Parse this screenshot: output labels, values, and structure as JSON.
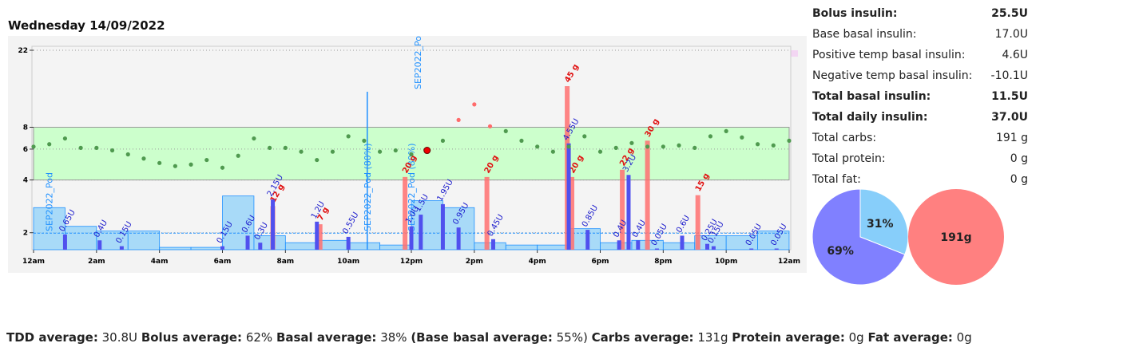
{
  "chart_data": [
    {
      "type": "daily",
      "title": "Wednesday 14/09/2022",
      "log_y": true,
      "xlim": [
        0,
        24
      ],
      "xticks": [
        {
          "value": 0,
          "label": "12am"
        },
        {
          "value": 2,
          "label": "2am"
        },
        {
          "value": 4,
          "label": "4am"
        },
        {
          "value": 6,
          "label": "6am"
        },
        {
          "value": 8,
          "label": "8am"
        },
        {
          "value": 10,
          "label": "10am"
        },
        {
          "value": 12,
          "label": "12pm"
        },
        {
          "value": 14,
          "label": "2pm"
        },
        {
          "value": 16,
          "label": "4pm"
        },
        {
          "value": 18,
          "label": "6pm"
        },
        {
          "value": 20,
          "label": "8pm"
        },
        {
          "value": 22,
          "label": "10pm"
        },
        {
          "value": 24,
          "label": "12am"
        }
      ],
      "ylim": [
        1.6,
        22
      ],
      "yticks": [
        2,
        4,
        6,
        8,
        22
      ],
      "target_range": [
        4,
        8
      ],
      "y2lim": [
        0,
        45
      ],
      "y3lim": [
        0,
        7
      ],
      "glucose": {
        "color": "#4f9a4f",
        "high_color": "#ff6b6b",
        "x": [
          0,
          0.5,
          1,
          1.5,
          2,
          2.5,
          3,
          3.5,
          4,
          4.5,
          5,
          5.5,
          6,
          6.5,
          7,
          7.5,
          8,
          8.5,
          9,
          9.5,
          10,
          10.5,
          11,
          11.5,
          12,
          12.5,
          13,
          13.5,
          14,
          14.5,
          15,
          15.5,
          16,
          16.5,
          17,
          17.5,
          18,
          18.5,
          19,
          19.5,
          20,
          20.5,
          21,
          21.5,
          22,
          22.5,
          23,
          23.5,
          24
        ],
        "values": [
          6.2,
          6.4,
          6.9,
          6.1,
          6.1,
          5.9,
          5.6,
          5.3,
          5.0,
          4.8,
          4.9,
          5.2,
          4.7,
          5.5,
          6.9,
          6.1,
          6.1,
          5.8,
          5.2,
          5.8,
          7.1,
          6.7,
          5.8,
          5.9,
          5.6,
          5.9,
          6.7,
          8.8,
          10.8,
          8.1,
          7.6,
          6.7,
          6.2,
          5.8,
          6.2,
          7.1,
          5.8,
          6.1,
          6.5,
          6.2,
          6.2,
          6.3,
          6.1,
          7.1,
          7.6,
          7.0,
          6.4,
          6.3,
          6.7
        ]
      },
      "marker": {
        "x": 12.5,
        "y": 5.9,
        "color": "#ee0000"
      },
      "basal": {
        "color": "#87cefa",
        "line_color": "#1e90ff",
        "x": [
          0,
          1,
          2,
          3,
          4,
          5,
          6,
          7,
          8,
          9,
          10,
          11,
          12,
          13,
          14,
          15,
          16,
          17,
          18,
          19,
          20,
          21,
          22,
          23
        ],
        "values": [
          1.8,
          1.0,
          0.8,
          0.8,
          0.1,
          0.1,
          2.3,
          0.6,
          0.3,
          0.4,
          0.3,
          0.2,
          2.1,
          1.8,
          0.3,
          0.2,
          0.2,
          0.9,
          0.3,
          0.4,
          0.3,
          0.6,
          0.6,
          0.8
        ]
      },
      "base_basal_rate": 0.71,
      "bolus": {
        "color": "#5050ee",
        "label_color": "#1a1acc",
        "x": [
          1.0,
          2.1,
          2.8,
          6.0,
          6.8,
          7.2,
          7.6,
          9.0,
          10.0,
          12.0,
          12.3,
          13.0,
          13.5,
          14.6,
          17.0,
          17.6,
          18.6,
          18.9,
          19.2,
          19.8,
          20.6,
          21.4,
          21.6,
          22.8,
          23.6
        ],
        "values": [
          0.65,
          0.4,
          0.15,
          0.15,
          0.6,
          0.3,
          2.15,
          1.2,
          0.55,
          1.0,
          1.5,
          1.95,
          0.95,
          0.45,
          4.55,
          0.85,
          0.4,
          3.2,
          0.4,
          0.05,
          0.6,
          0.25,
          0.15,
          0.05,
          0.05
        ],
        "value_labels": [
          "0.65U",
          "0.4U",
          "0.15U",
          "0.15U",
          "0.6U",
          "0.3U",
          "2.15U",
          "1.2U",
          "0.55U",
          "1.0U",
          "1.5U",
          "1.95U",
          "0.95U",
          "0.45U",
          "4.55U",
          "0.85U",
          "0.4U",
          "3.2U",
          "0.4U",
          "0.05U",
          "0.6U",
          "0.25U",
          "0.15U",
          "0.05U",
          "0.05U"
        ]
      },
      "carbs": {
        "color": "#ff7070",
        "label_color": "#e01010",
        "x": [
          7.6,
          9.1,
          11.8,
          14.4,
          16.95,
          17.1,
          18.7,
          19.5,
          21.1
        ],
        "values": [
          12,
          7,
          20,
          20,
          45,
          20,
          22,
          30,
          15
        ],
        "value_labels": [
          "12 g",
          "7 g",
          "20 g",
          "20 g",
          "45 g",
          "20 g",
          "22 g",
          "30 g",
          "15 g"
        ]
      },
      "annotations": [
        {
          "x": 0.5,
          "text": "SEP2022_Pod"
        },
        {
          "x": 10.6,
          "text": "SEP2022_Pod (80%)"
        },
        {
          "x": 12.0,
          "text": "SEP2022_Pod (80%)"
        },
        {
          "x": 12.2,
          "text": "SEP2022_Po"
        }
      ]
    },
    {
      "type": "pie",
      "values": [
        31,
        69
      ],
      "value_labels": [
        "31%",
        "69%"
      ],
      "colors": [
        "#87cefa",
        "#8080ff"
      ]
    },
    {
      "type": "pie",
      "values": [
        191
      ],
      "value_labels": [
        "191g"
      ],
      "colors": [
        "#ff8080"
      ]
    }
  ],
  "summary": [
    {
      "label": "Bolus insulin:",
      "value": "25.5U",
      "bold": true
    },
    {
      "label": "Base basal insulin:",
      "value": "17.0U",
      "bold": false
    },
    {
      "label": "Positive temp basal insulin:",
      "value": "4.6U",
      "bold": false
    },
    {
      "label": "Negative temp basal insulin:",
      "value": "-10.1U",
      "bold": false
    },
    {
      "label": "Total basal insulin:",
      "value": "11.5U",
      "bold": true
    },
    {
      "label": "Total daily insulin:",
      "value": "37.0U",
      "bold": true
    },
    {
      "label": "Total carbs:",
      "value": "191 g",
      "bold": false
    },
    {
      "label": "Total protein:",
      "value": "0 g",
      "bold": false
    },
    {
      "label": "Total fat:",
      "value": "0 g",
      "bold": false
    }
  ],
  "footer": [
    {
      "label": "TDD average:",
      "value": "30.8U"
    },
    {
      "label": "Bolus average:",
      "value": "62%"
    },
    {
      "label": "Basal average:",
      "value": "38%"
    },
    {
      "label": "(Base basal average:",
      "value": "55%)"
    },
    {
      "label": "Carbs average:",
      "value": "131g"
    },
    {
      "label": "Protein average:",
      "value": "0g"
    },
    {
      "label": "Fat average:",
      "value": "0g"
    }
  ]
}
